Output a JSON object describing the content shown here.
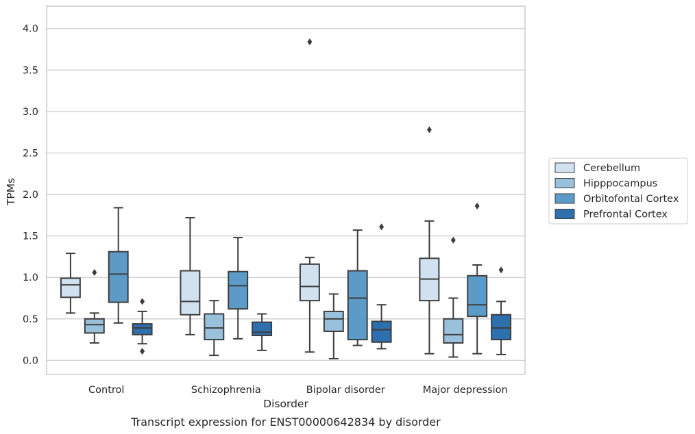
{
  "chart_data": {
    "type": "box",
    "caption": "Transcript expression for ENST00000642834 by disorder",
    "xlabel": "Disorder",
    "ylabel": "TPMs",
    "ylim": [
      -0.17,
      4.27
    ],
    "yticks": [
      "0.0",
      "0.5",
      "1.0",
      "1.5",
      "2.0",
      "2.5",
      "3.0",
      "3.5",
      "4.0"
    ],
    "grid": true,
    "legend_position": "right",
    "categories": [
      "Control",
      "Schizophrenia",
      "Bipolar disorder",
      "Major depression"
    ],
    "series": [
      {
        "name": "Cerebellum",
        "color": "#d2e1f0",
        "boxes": [
          {
            "whislo": 0.57,
            "q1": 0.76,
            "med": 0.91,
            "q3": 0.99,
            "whishi": 1.29,
            "fliers": []
          },
          {
            "whislo": 0.31,
            "q1": 0.55,
            "med": 0.71,
            "q3": 1.08,
            "whishi": 1.72,
            "fliers": []
          },
          {
            "whislo": 0.1,
            "q1": 0.72,
            "med": 0.89,
            "q3": 1.16,
            "whishi": 1.24,
            "fliers": [
              3.84
            ]
          },
          {
            "whislo": 0.08,
            "q1": 0.72,
            "med": 0.98,
            "q3": 1.23,
            "whishi": 1.68,
            "fliers": [
              2.78
            ]
          }
        ]
      },
      {
        "name": "Hipppocampus",
        "color": "#9ac1dc",
        "boxes": [
          {
            "whislo": 0.21,
            "q1": 0.33,
            "med": 0.43,
            "q3": 0.5,
            "whishi": 0.57,
            "fliers": [
              1.06
            ]
          },
          {
            "whislo": 0.06,
            "q1": 0.25,
            "med": 0.39,
            "q3": 0.56,
            "whishi": 0.72,
            "fliers": []
          },
          {
            "whislo": 0.02,
            "q1": 0.35,
            "med": 0.5,
            "q3": 0.59,
            "whishi": 0.8,
            "fliers": []
          },
          {
            "whislo": 0.04,
            "q1": 0.21,
            "med": 0.31,
            "q3": 0.5,
            "whishi": 0.75,
            "fliers": [
              1.45
            ]
          }
        ]
      },
      {
        "name": "Orbitofontal Cortex",
        "color": "#5c9bc7",
        "boxes": [
          {
            "whislo": 0.45,
            "q1": 0.7,
            "med": 1.04,
            "q3": 1.31,
            "whishi": 1.84,
            "fliers": []
          },
          {
            "whislo": 0.26,
            "q1": 0.62,
            "med": 0.9,
            "q3": 1.07,
            "whishi": 1.48,
            "fliers": []
          },
          {
            "whislo": 0.18,
            "q1": 0.25,
            "med": 0.75,
            "q3": 1.08,
            "whishi": 1.57,
            "fliers": []
          },
          {
            "whislo": 0.08,
            "q1": 0.53,
            "med": 0.67,
            "q3": 1.02,
            "whishi": 1.15,
            "fliers": [
              1.86
            ]
          }
        ]
      },
      {
        "name": "Prefrontal Cortex",
        "color": "#2e6fad",
        "boxes": [
          {
            "whislo": 0.2,
            "q1": 0.31,
            "med": 0.39,
            "q3": 0.44,
            "whishi": 0.59,
            "fliers": [
              0.71,
              0.11
            ]
          },
          {
            "whislo": 0.12,
            "q1": 0.3,
            "med": 0.34,
            "q3": 0.46,
            "whishi": 0.56,
            "fliers": []
          },
          {
            "whislo": 0.14,
            "q1": 0.22,
            "med": 0.37,
            "q3": 0.47,
            "whishi": 0.67,
            "fliers": [
              1.61
            ]
          },
          {
            "whislo": 0.07,
            "q1": 0.25,
            "med": 0.39,
            "q3": 0.55,
            "whishi": 0.71,
            "fliers": [
              1.09
            ]
          }
        ]
      }
    ],
    "line_color": "#3d3d3d",
    "grid_color": "#cccccc",
    "frame_color": "#cccccc",
    "outlier_marker": "diamond"
  }
}
